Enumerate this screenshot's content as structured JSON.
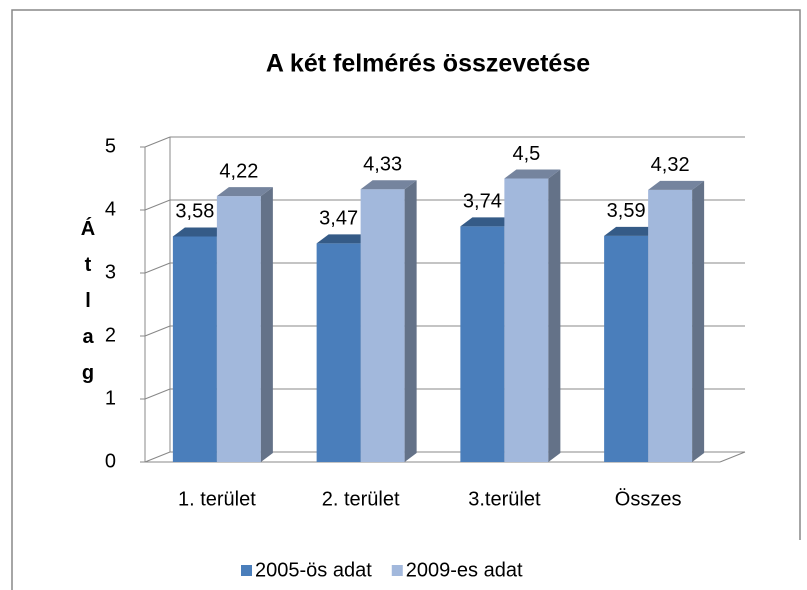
{
  "chart_data": {
    "type": "bar3d",
    "title": "A két felmérés összevetése",
    "ylabel": "Átlag",
    "categories": [
      "1. terület",
      "2. terület",
      "3.terület",
      "Összes"
    ],
    "series": [
      {
        "name": "2005-ös adat",
        "color": "#4a7ebb",
        "values": [
          3.58,
          3.47,
          3.74,
          3.59
        ],
        "value_labels": [
          "3,58",
          "3,47",
          "3,74",
          "3,59"
        ]
      },
      {
        "name": "2009-es adat",
        "color": "#a2b8dc",
        "values": [
          4.22,
          4.33,
          4.5,
          4.32
        ],
        "value_labels": [
          "4,22",
          "4,33",
          "4,5",
          "4,32"
        ]
      }
    ],
    "ylim": [
      0,
      5
    ],
    "yticks": [
      0,
      1,
      2,
      3,
      4,
      5
    ],
    "grid": true,
    "legend": "bottom"
  }
}
